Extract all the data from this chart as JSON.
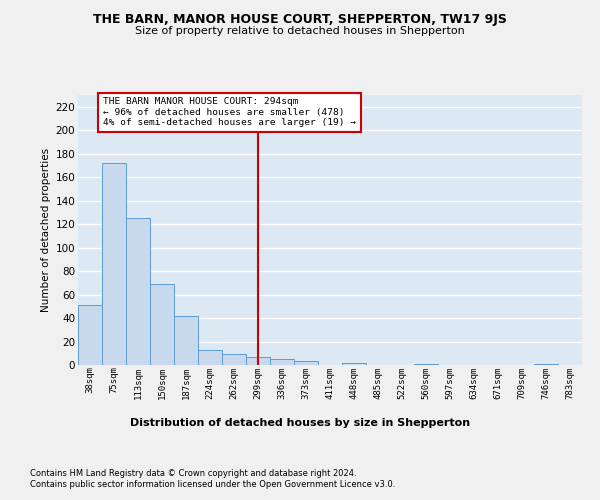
{
  "title": "THE BARN, MANOR HOUSE COURT, SHEPPERTON, TW17 9JS",
  "subtitle": "Size of property relative to detached houses in Shepperton",
  "xlabel": "Distribution of detached houses by size in Shepperton",
  "ylabel": "Number of detached properties",
  "bar_color": "#c8d9ee",
  "bar_edge_color": "#5b9bd5",
  "plot_bg_color": "#dde8f5",
  "fig_bg_color": "#f0f0f0",
  "grid_color": "#ffffff",
  "categories": [
    "38sqm",
    "75sqm",
    "113sqm",
    "150sqm",
    "187sqm",
    "224sqm",
    "262sqm",
    "299sqm",
    "336sqm",
    "373sqm",
    "411sqm",
    "448sqm",
    "485sqm",
    "522sqm",
    "560sqm",
    "597sqm",
    "634sqm",
    "671sqm",
    "709sqm",
    "746sqm",
    "783sqm"
  ],
  "values": [
    51,
    172,
    125,
    69,
    42,
    13,
    9,
    7,
    5,
    3,
    0,
    2,
    0,
    0,
    1,
    0,
    0,
    0,
    0,
    1,
    0
  ],
  "ylim": [
    0,
    230
  ],
  "yticks": [
    0,
    20,
    40,
    60,
    80,
    100,
    120,
    140,
    160,
    180,
    200,
    220
  ],
  "vline_x_idx": 7,
  "vline_color": "#cc0000",
  "annotation_line0": "THE BARN MANOR HOUSE COURT: 294sqm",
  "annotation_line1": "← 96% of detached houses are smaller (478)",
  "annotation_line2": "4% of semi-detached houses are larger (19) →",
  "annotation_box_facecolor": "#ffffff",
  "annotation_box_edgecolor": "#cc0000",
  "footnote1": "Contains HM Land Registry data © Crown copyright and database right 2024.",
  "footnote2": "Contains public sector information licensed under the Open Government Licence v3.0."
}
